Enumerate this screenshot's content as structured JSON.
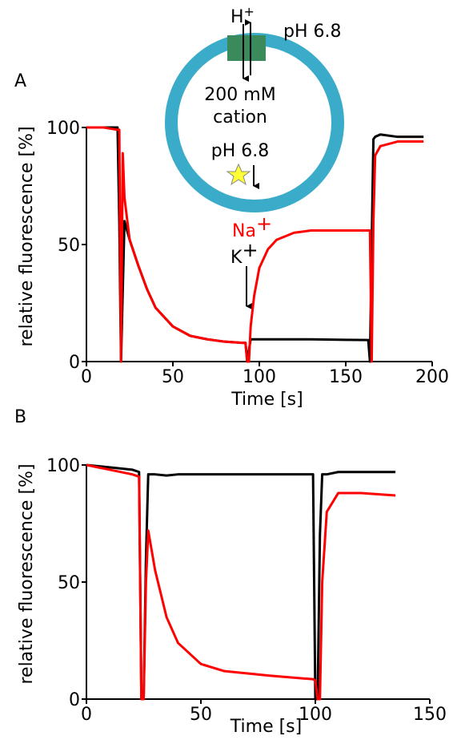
{
  "chart_data": [
    {
      "type": "line",
      "panel": "A",
      "x_label": "Time [s]",
      "y_label": "relative fluorescence [%]",
      "x": [
        0,
        10,
        18,
        19,
        20,
        21,
        22,
        25,
        30,
        35,
        40,
        50,
        60,
        70,
        80,
        90,
        92,
        93,
        94,
        95,
        97,
        100,
        105,
        110,
        120,
        130,
        150,
        163,
        164,
        165,
        166,
        167,
        170,
        180,
        195
      ],
      "series": [
        {
          "color": "#000000",
          "values": [
            100,
            100,
            100,
            60,
            0,
            30,
            60,
            52,
            41,
            31,
            23,
            15,
            11,
            9.5,
            8.5,
            8,
            8,
            0,
            5,
            9.5,
            9.5,
            9.5,
            9.5,
            9.5,
            9.5,
            9.5,
            9.3,
            9.2,
            0,
            50,
            95,
            96,
            97,
            96,
            96
          ]
        },
        {
          "color": "#ff0000",
          "values": [
            100,
            100,
            99,
            99,
            0,
            89,
            70,
            52,
            41,
            31,
            23,
            15,
            11,
            9.5,
            8.5,
            8,
            8,
            0,
            0,
            15,
            28,
            40,
            48,
            52,
            55,
            56,
            56,
            56,
            56,
            0,
            60,
            88,
            92,
            94,
            94
          ]
        }
      ],
      "xlim": [
        0,
        200
      ],
      "xticks": [
        0,
        50,
        100,
        150,
        200
      ],
      "ylim": [
        0,
        100
      ],
      "yticks": [
        0,
        50,
        100
      ],
      "annotations": [
        {
          "text": "Na",
          "sup": "+",
          "color": "#ff0000"
        },
        {
          "text": "K",
          "sup": "+",
          "color": "#000000"
        }
      ]
    },
    {
      "type": "line",
      "panel": "B",
      "x_label": "Time [s]",
      "y_label": "relative fluorescence [%]",
      "x": [
        0,
        10,
        20,
        23,
        24,
        25,
        26,
        27,
        30,
        35,
        40,
        50,
        60,
        80,
        99,
        100,
        101,
        102,
        103,
        105,
        110,
        120,
        135
      ],
      "series": [
        {
          "color": "#000000",
          "values": [
            100,
            99,
            98,
            97,
            0,
            0,
            60,
            96,
            96,
            95.5,
            96,
            96,
            96,
            96,
            96,
            0,
            0,
            70,
            96,
            96,
            97,
            97,
            97
          ]
        },
        {
          "color": "#ff0000",
          "values": [
            100,
            98,
            96,
            95,
            0,
            0,
            50,
            72,
            55,
            35,
            24,
            15,
            12,
            10,
            8.5,
            8,
            0,
            0,
            50,
            80,
            88,
            88,
            87
          ]
        }
      ],
      "xlim": [
        0,
        150
      ],
      "xticks": [
        0,
        50,
        100,
        150
      ],
      "ylim": [
        0,
        100
      ],
      "yticks": [
        0,
        50,
        100
      ]
    }
  ],
  "diagram": {
    "proton": {
      "text": "H",
      "sup": "+"
    },
    "outside_ph": "pH 6.8",
    "inside_line1": "200 mM",
    "inside_line2": "cation",
    "inside_ph": "pH 6.8"
  }
}
